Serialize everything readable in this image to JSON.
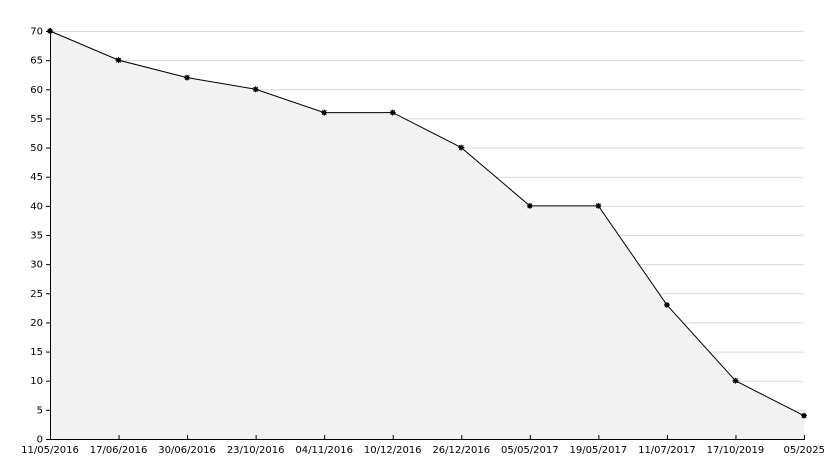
{
  "chart_data": {
    "type": "area",
    "x_tick_labels": [
      "11/05/2016",
      "17/06/2016",
      "30/06/2016",
      "23/10/2016",
      "04/11/2016",
      "10/12/2016",
      "26/12/2016",
      "05/05/2017",
      "19/05/2017",
      "11/07/2017",
      "17/10/2019",
      "05/2025"
    ],
    "x": [
      "11/05/2016",
      "17/06/2016",
      "30/06/2016",
      "23/10/2016",
      "04/11/2016",
      "10/12/2016",
      "26/12/2016",
      "05/05/2017",
      "19/05/2017",
      "11/07/2017",
      "17/10/2019",
      "05/2025"
    ],
    "values": [
      70,
      65,
      62,
      60,
      56,
      56,
      50,
      40,
      40,
      23,
      10,
      4
    ],
    "y_ticks": [
      0,
      5,
      10,
      15,
      20,
      25,
      30,
      35,
      40,
      45,
      50,
      55,
      60,
      65,
      70
    ],
    "ylim": [
      0,
      70
    ],
    "grid": true,
    "title": "",
    "xlabel": "",
    "ylabel": "",
    "colors": {
      "line": "#000000",
      "fill": "#f2f2f2",
      "grid": "#d9d9d9",
      "axis": "#000000",
      "marker": "#000000"
    }
  }
}
